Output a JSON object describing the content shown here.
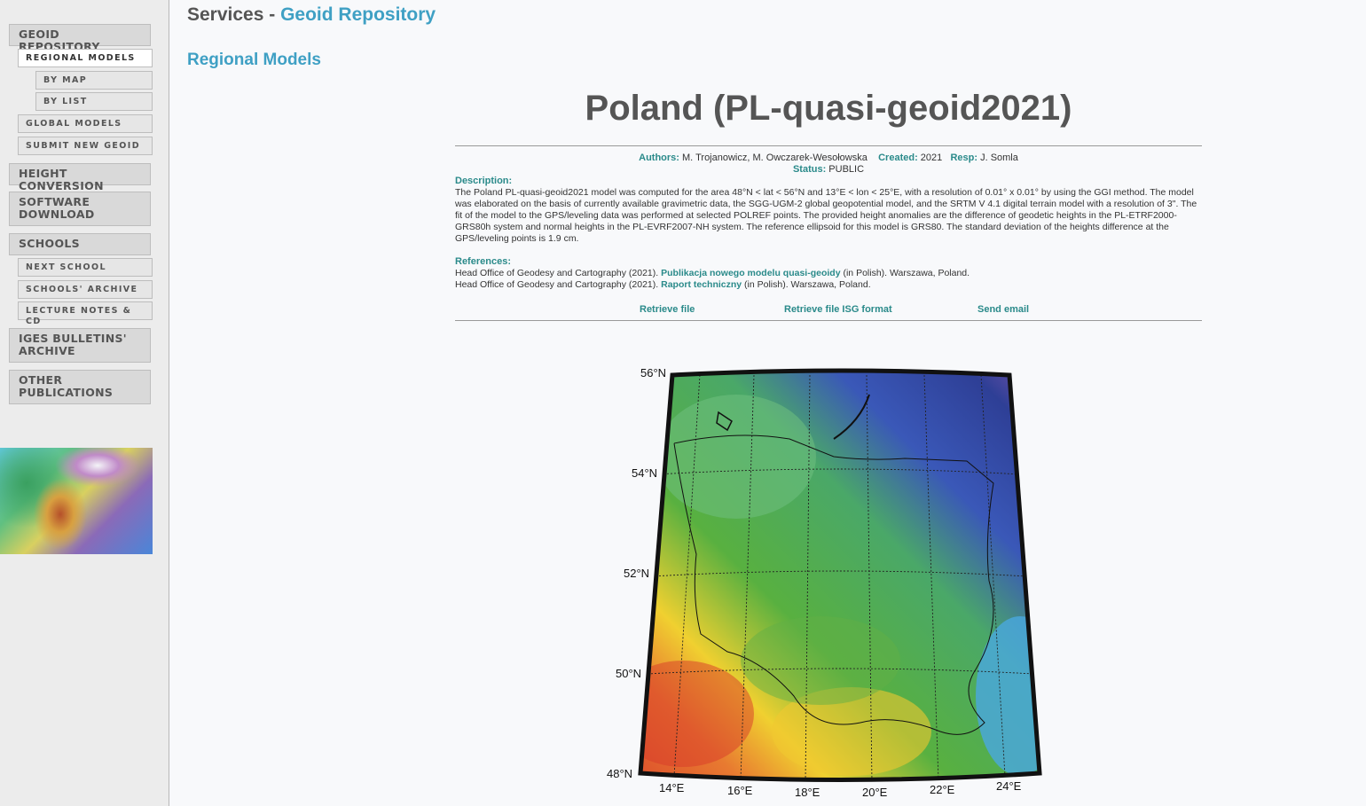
{
  "sidebar": {
    "geoid_repository": "GEOID REPOSITORY",
    "regional_models": "REGIONAL MODELS",
    "by_map": "BY MAP",
    "by_list": "BY LIST",
    "global_models": "GLOBAL MODELS",
    "submit_new_geoid": "SUBMIT NEW GEOID",
    "height_conversion": "HEIGHT CONVERSION",
    "software_download_1": "SOFTWARE",
    "software_download_2": "DOWNLOAD",
    "schools": "SCHOOLS",
    "next_school": "NEXT SCHOOL",
    "schools_archive": "SCHOOLS' ARCHIVE",
    "lecture_notes": "LECTURE NOTES & CD",
    "iges_bulletins_1": "IGES BULLETINS'",
    "iges_bulletins_2": "ARCHIVE",
    "other_publications_1": "OTHER",
    "other_publications_2": "PUBLICATIONS"
  },
  "header": {
    "services": "Services - ",
    "geoid_repository": "Geoid Repository"
  },
  "section_title": "Regional Models",
  "model": {
    "title": "Poland (PL-quasi-geoid2021)",
    "authors_label": "Authors:",
    "authors": "M. Trojanowicz, M. Owczarek-Wesołowska",
    "created_label": "Created:",
    "created": "2021",
    "resp_label": "Resp:",
    "resp": "J. Somla",
    "status_label": "Status:",
    "status": "PUBLIC",
    "description_label": "Description:",
    "description": "The Poland PL-quasi-geoid2021 model was computed for the area 48°N < lat < 56°N and 13°E < lon < 25°E, with a resolution of 0.01° x 0.01° by using the GGI method. The model was elaborated on the basis of currently available gravimetric data, the SGG-UGM-2 global geopotential model, and the SRTM V 4.1 digital terrain model with a resolution of 3\". The fit of the model to the GPS/leveling data was performed at selected POLREF points. The provided height anomalies are the difference of geodetic heights in the PL-ETRF2000-GRS80h system and normal heights in the PL-EVRF2007-NH system. The reference ellipsoid for this model is GRS80. The standard deviation of the heights difference at the GPS/leveling points is 1.9 cm.",
    "references_label": "References:",
    "ref1_pre": "Head Office of Geodesy and Cartography (2021). ",
    "ref1_link": "Publikacja nowego modelu quasi-geoidy",
    "ref1_post": " (in Polish). Warszawa, Poland.",
    "ref2_pre": "Head Office of Geodesy and Cartography (2021). ",
    "ref2_link": "Raport techniczny",
    "ref2_post": " (in Polish). Warszawa, Poland."
  },
  "actions": {
    "retrieve_file": "Retrieve file",
    "retrieve_isg": "Retrieve file ISG format",
    "send_email": "Send email"
  },
  "map_labels": {
    "lat56": "56°N",
    "lat54": "54°N",
    "lat52": "52°N",
    "lat50": "50°N",
    "lat48": "48°N",
    "lon14": "14°E",
    "lon16": "16°E",
    "lon18": "18°E",
    "lon20": "20°E",
    "lon22": "22°E",
    "lon24": "24°E"
  }
}
